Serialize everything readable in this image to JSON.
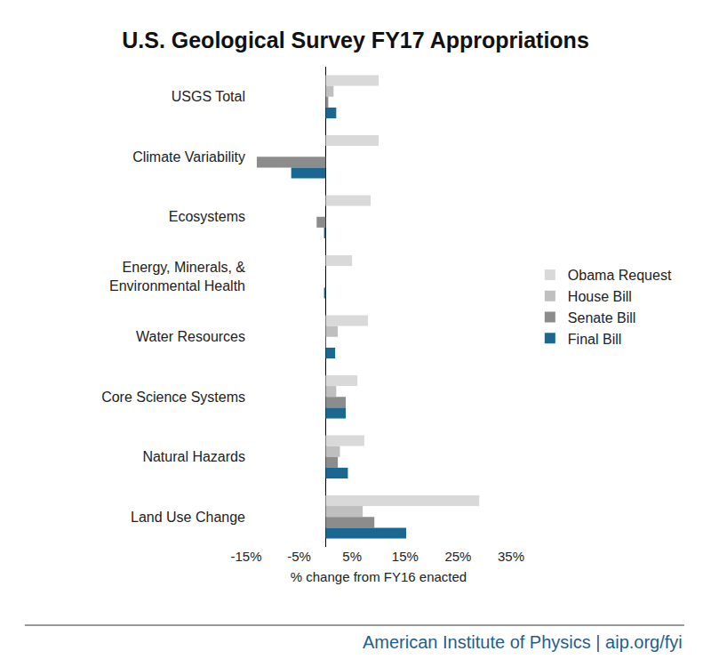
{
  "chart_data": {
    "type": "bar",
    "orientation": "horizontal",
    "title": "U.S. Geological Survey FY17 Appropriations",
    "x_label": "% change from FY16 enacted",
    "categories": [
      "USGS Total",
      "Climate Variability",
      "Ecosystems",
      "Energy, Minerals, & Environmental Health",
      "Water Resources",
      "Core Science Systems",
      "Natural Hazards",
      "Land Use Change"
    ],
    "series": [
      {
        "name": "Obama Request",
        "color": "#d9d9d9",
        "values": [
          10,
          10,
          8.5,
          5,
          8,
          6,
          7.3,
          29
        ]
      },
      {
        "name": "House Bill",
        "color": "#bfbfbf",
        "values": [
          1.5,
          0,
          0,
          0,
          2.3,
          2,
          2.7,
          7
        ]
      },
      {
        "name": "Senate Bill",
        "color": "#8c8c8c",
        "values": [
          0.5,
          -13,
          -1.7,
          0,
          0.1,
          3.8,
          2.3,
          9.2
        ]
      },
      {
        "name": "Final Bill",
        "color": "#1a6792",
        "values": [
          2,
          -6.5,
          -0.3,
          -0.3,
          1.8,
          3.8,
          4.2,
          15.2
        ]
      }
    ],
    "xlim": [
      -15,
      35
    ],
    "xticks": [
      {
        "value": -15,
        "label": "-15%"
      },
      {
        "value": -5,
        "label": "-5%"
      },
      {
        "value": 5,
        "label": "5%"
      },
      {
        "value": 15,
        "label": "15%"
      },
      {
        "value": 25,
        "label": "25%"
      },
      {
        "value": 35,
        "label": "35%"
      }
    ],
    "grid": false,
    "legend": "right",
    "annotations": [
      "American Institute of Physics | aip.org/fyi"
    ]
  }
}
